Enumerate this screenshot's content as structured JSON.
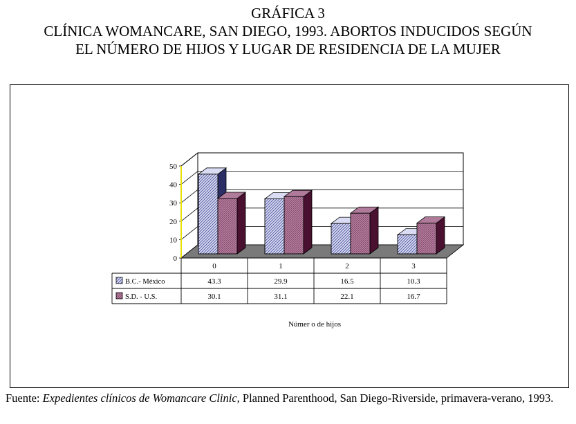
{
  "header": {
    "figure_label": "GRÁFICA 3",
    "title_line1": "CLÍNICA WOMANCARE, SAN DIEGO, 1993. ABORTOS INDUCIDOS SEGÚN",
    "title_line2": "EL NÚMERO DE HIJOS Y LUGAR DE RESIDENCIA DE LA MUJER"
  },
  "source": {
    "prefix": "Fuente: ",
    "italic": "Expedientes clínicos de Womancare Clinic",
    "suffix": ", Planned Parenthood, San Diego-Riverside, primavera-verano, 1993."
  },
  "colors": {
    "series1": "#d9dcf2",
    "series1_hatch": "#4a4f9c",
    "series1_side": "#2c2f66",
    "series2": "#b07a9a",
    "series2_hatch": "#5a1b3e",
    "series2_side": "#4a1030",
    "floor": "#7a7a7a",
    "axis": "#e8e000"
  },
  "chart_data": {
    "type": "bar",
    "title": "",
    "xlabel": "Númer o de hijos",
    "ylabel": "",
    "ylim": [
      0,
      50
    ],
    "yticks": [
      "0",
      "10",
      "20",
      "30",
      "40",
      "50"
    ],
    "categories": [
      "0",
      "1",
      "2",
      "3"
    ],
    "series": [
      {
        "name": "B.C.- México",
        "values": [
          43.3,
          29.9,
          16.5,
          10.3
        ],
        "labels": [
          "43.3",
          "29.9",
          "16.5",
          "10.3"
        ]
      },
      {
        "name": "S.D. - U.S.",
        "values": [
          30.1,
          31.1,
          22.1,
          16.7
        ],
        "labels": [
          "30.1",
          "31.1",
          "22.1",
          "16.7"
        ]
      }
    ],
    "grid": true,
    "legend": "data-table"
  }
}
